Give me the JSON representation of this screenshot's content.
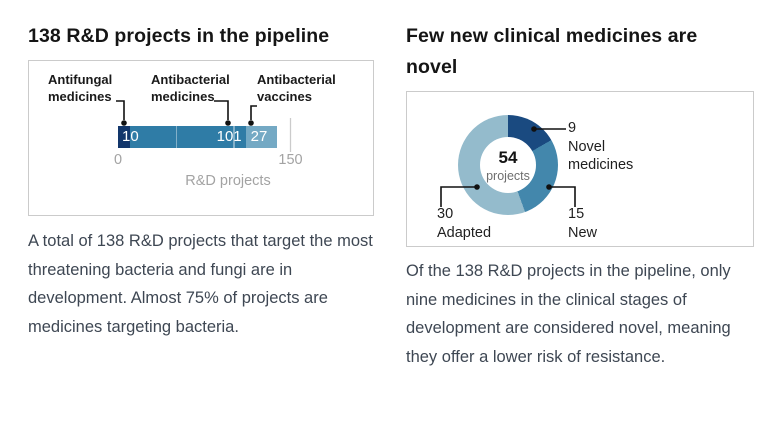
{
  "left_panel": {
    "title": "138 R&D projects in the pipeline",
    "description": "A total of 138 R&D projects that target the most threatening bacteria and fungi are in development. Almost 75% of projects are medicines targeting bacteria."
  },
  "right_panel": {
    "title": "Few new clinical medicines are novel",
    "description": "Of the 138 R&D projects in the pipeline, only nine medicines in the clinical stages of development are considered novel, meaning they offer a lower risk of resistance."
  },
  "chart_data": [
    {
      "type": "bar",
      "orientation": "horizontal",
      "stacked": true,
      "title": "138 R&D projects in the pipeline",
      "categories": [
        "Antifungal medicines",
        "Antibacterial medicines",
        "Antibacterial vaccines"
      ],
      "values": [
        10,
        101,
        27
      ],
      "total": 138,
      "colors": [
        "#12366b",
        "#2f7ca6",
        "#74a9c4"
      ],
      "xlabel": "R&D projects",
      "xlim": [
        0,
        150
      ],
      "tick_labels": [
        "0",
        "150"
      ],
      "gridlines_inner": [
        50,
        100
      ],
      "grid": true,
      "legend": "none"
    },
    {
      "type": "pie",
      "subtype": "donut",
      "title": "Few new clinical medicines are novel",
      "center_value": "54",
      "center_label": "projects",
      "start_angle_deg": 0,
      "direction": "clockwise",
      "slices": [
        {
          "label": "Novel medicines",
          "value": 9,
          "color": "#1a4a80"
        },
        {
          "label": "New",
          "value": 15,
          "color": "#4387ac"
        },
        {
          "label": "Adapted",
          "value": 30,
          "color": "#94bbcc"
        }
      ],
      "legend": "callouts"
    }
  ],
  "ui_colors": {
    "box_border": "#cbcbcb",
    "axis_text": "#a3a3a3",
    "body_text": "#3e4753",
    "title_text": "#151515"
  }
}
